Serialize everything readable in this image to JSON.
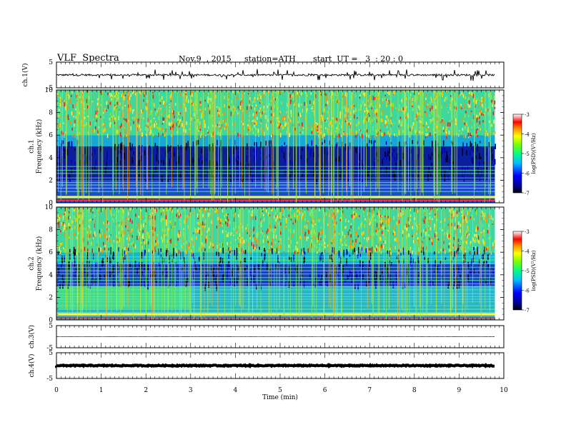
{
  "header": {
    "title": "VLF  Spectra",
    "date": "Nov.9  , 2015",
    "station": "station=ATH",
    "start_ut": "start  UT =   3  : 20 : 0"
  },
  "chart_data": [
    {
      "type": "line",
      "panel": "ch1-waveform",
      "ylabel": "ch.1(V)",
      "ylim": [
        -5,
        5
      ],
      "yticks": [
        "5",
        "-5"
      ],
      "xlim": [
        0,
        10
      ],
      "data_end_min": 9.8,
      "baseline": 0,
      "noise_amplitude": 0.35,
      "spike_amplitude": 2.2
    },
    {
      "type": "heatmap",
      "panel": "ch1-spectrogram",
      "ylabel_lines": [
        "ch.1",
        "Frequency  (kHz)"
      ],
      "ylim": [
        0,
        10
      ],
      "yticks": [
        "0",
        "2",
        "4",
        "6",
        "8",
        "10"
      ],
      "xlim": [
        0,
        10
      ],
      "data_end_min": 9.8,
      "colorbar": {
        "label": "log(PSD)(V²/Hz)",
        "range": [
          -7,
          -3
        ],
        "ticks": [
          "-3",
          "-4",
          "-5",
          "-6",
          "-7"
        ]
      },
      "description": "broadband sferics, quiet band 2-5 kHz, narrowband lines below 2 kHz"
    },
    {
      "type": "heatmap",
      "panel": "ch2-spectrogram",
      "ylabel_lines": [
        "ch.2",
        "Frequency  (kHz)"
      ],
      "ylim": [
        0,
        10
      ],
      "yticks": [
        "0",
        "2",
        "4",
        "6",
        "8",
        "10"
      ],
      "xlim": [
        0,
        10
      ],
      "data_end_min": 9.8,
      "colorbar": {
        "label": "log(PSD)(V²/Hz)",
        "range": [
          -7,
          -3
        ],
        "ticks": [
          "-3",
          "-4",
          "-5",
          "-6",
          "-7"
        ]
      },
      "description": "broadband sferics, elevated 1-3 kHz band before 3 min"
    },
    {
      "type": "line",
      "panel": "ch3-waveform",
      "ylabel": "ch.3(V)",
      "ylim": [
        -5,
        5
      ],
      "yticks": [
        "5",
        "-5"
      ],
      "xlim": [
        0,
        10
      ],
      "data_end_min": 9.8,
      "baseline": 0,
      "noise_amplitude": 0.05
    },
    {
      "type": "line",
      "panel": "ch4-waveform",
      "ylabel": "ch.4(V)",
      "ylim": [
        -5,
        5
      ],
      "yticks": [
        "5",
        "-5"
      ],
      "xlim": [
        0,
        10
      ],
      "data_end_min": 9.8,
      "baseline": 0,
      "noise_amplitude": 0.2
    }
  ],
  "xaxis": {
    "label": "Time  (min)",
    "ticks": [
      "0",
      "1",
      "2",
      "3",
      "4",
      "5",
      "6",
      "7",
      "8",
      "9",
      "10"
    ],
    "range": [
      0,
      10
    ]
  }
}
